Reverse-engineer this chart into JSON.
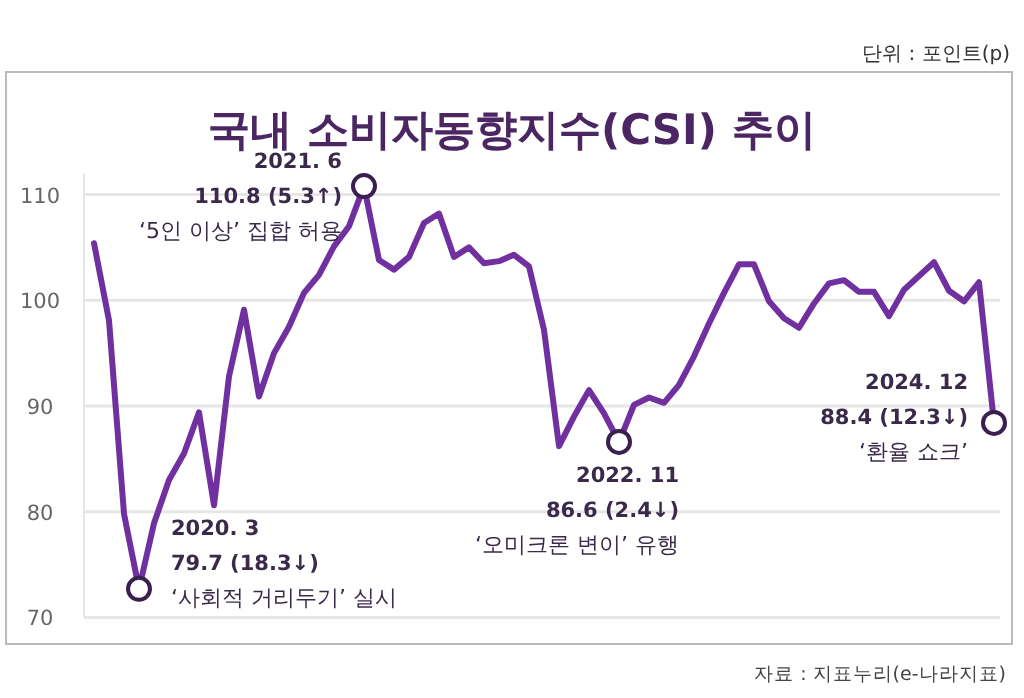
{
  "chart_data": {
    "type": "line",
    "title": "국내 소비자동향지수(CSI) 추이",
    "subtitle": "단위 : 포인트(p)",
    "categories": [
      null,
      null,
      null,
      null,
      null,
      null,
      null,
      null,
      null,
      null,
      null,
      null,
      null,
      null,
      null,
      null,
      null,
      null,
      null,
      null,
      null,
      null,
      null,
      null,
      null,
      null,
      null,
      null,
      null,
      null,
      null,
      null,
      null,
      null,
      null,
      null,
      null,
      null,
      null,
      null,
      null,
      null,
      null,
      null,
      null,
      null,
      null,
      null,
      null,
      null,
      null,
      null,
      null,
      null,
      null,
      null,
      null,
      null,
      null,
      null,
      null
    ],
    "series": [
      {
        "color": "#7030a0",
        "values": [
          105.4,
          98.1,
          79.8,
          72.7,
          78.9,
          83.0,
          85.5,
          89.4,
          80.6,
          92.8,
          99.1,
          90.9,
          95.0,
          97.5,
          100.7,
          102.4,
          105.1,
          107.0,
          110.8,
          103.8,
          102.9,
          104.1,
          107.3,
          108.2,
          104.1,
          105.0,
          103.5,
          103.7,
          104.3,
          103.2,
          97.2,
          86.2,
          89.0,
          91.5,
          89.3,
          86.6,
          90.1,
          90.8,
          90.3,
          92.0,
          94.7,
          97.8,
          100.7,
          103.4,
          103.4,
          99.9,
          98.3,
          97.4,
          99.7,
          101.6,
          101.9,
          100.8,
          100.8,
          98.5,
          101.0,
          102.3,
          103.6,
          100.9,
          99.9,
          101.7,
          88.4
        ]
      }
    ],
    "ylim": [
      70,
      112
    ],
    "yticks": [
      70,
      80,
      90,
      100,
      110
    ],
    "grid": "y",
    "tick_labels": "y",
    "line_style": "solid",
    "annotations": [
      "2020. 3\n79.7 (18.3↓)\n‘사회적 거리두기’ 실시",
      "2021. 6\n110.8 (5.3↑)\n‘5인 이상’ 집합 허용",
      "2022. 11\n86.6 (2.4↓)\n‘오미크론 변이’ 유행",
      "2024. 12\n88.4 (12.3↓)\n‘환율 쇼크’",
      "자료 : 지표누리(e-나라지표)"
    ]
  }
}
